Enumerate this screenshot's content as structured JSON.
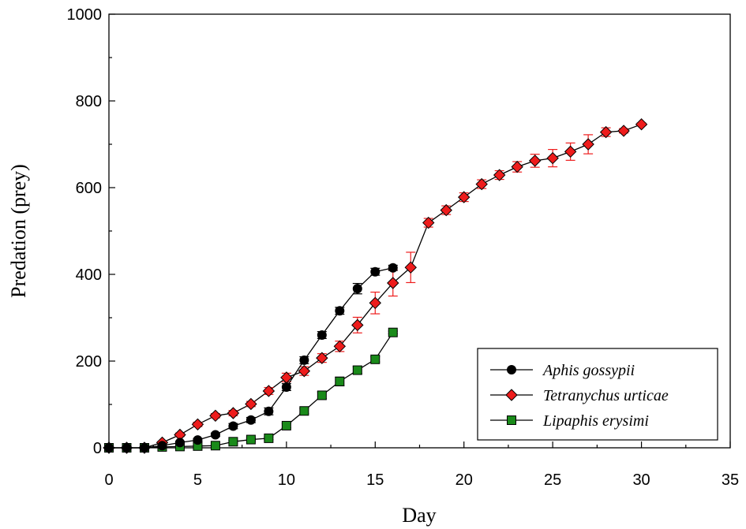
{
  "chart_data": {
    "type": "line",
    "title": "",
    "xlabel": "Day",
    "ylabel": "Predation (prey)",
    "xlim": [
      0,
      35
    ],
    "ylim": [
      0,
      1000
    ],
    "xticks": [
      "0",
      "5",
      "10",
      "15",
      "20",
      "25",
      "30",
      "35"
    ],
    "yticks": [
      "0",
      "200",
      "400",
      "600",
      "800",
      "1000"
    ],
    "grid": false,
    "legend_position": "bottom-right",
    "series": [
      {
        "name": "Aphis gossypii",
        "marker": "circle",
        "marker_color": "#000000",
        "error_color": "#000000",
        "x": [
          0,
          1,
          2,
          3,
          4,
          5,
          6,
          7,
          8,
          9,
          10,
          11,
          12,
          13,
          14,
          15,
          16
        ],
        "y": [
          0,
          0,
          0,
          5,
          12,
          18,
          30,
          50,
          64,
          84,
          140,
          202,
          260,
          316,
          367,
          406,
          415
        ],
        "err": [
          0,
          0,
          0,
          2,
          3,
          3,
          4,
          6,
          6,
          8,
          8,
          8,
          8,
          8,
          12,
          8,
          6
        ]
      },
      {
        "name": "Tetranychus urticae",
        "marker": "diamond",
        "marker_color": "#ee1c1c",
        "error_color": "#ee1c1c",
        "x": [
          0,
          1,
          2,
          3,
          4,
          5,
          6,
          7,
          8,
          9,
          10,
          11,
          12,
          13,
          14,
          15,
          16,
          17,
          18,
          19,
          20,
          21,
          22,
          23,
          24,
          25,
          26,
          27,
          28,
          29,
          30
        ],
        "y": [
          0,
          0,
          0,
          12,
          30,
          54,
          74,
          80,
          101,
          131,
          162,
          177,
          207,
          234,
          283,
          334,
          380,
          416,
          519,
          548,
          578,
          608,
          629,
          648,
          662,
          668,
          683,
          700,
          728,
          731,
          746
        ],
        "err": [
          0,
          0,
          0,
          3,
          4,
          5,
          5,
          6,
          6,
          8,
          10,
          10,
          10,
          12,
          18,
          25,
          30,
          35,
          10,
          10,
          10,
          10,
          10,
          12,
          15,
          20,
          20,
          22,
          10,
          5,
          3
        ]
      },
      {
        "name": "Lipaphis erysimi",
        "marker": "square",
        "marker_color": "#1a8a1a",
        "error_color": "#000000",
        "x": [
          0,
          1,
          2,
          3,
          4,
          5,
          6,
          7,
          8,
          9,
          10,
          11,
          12,
          13,
          14,
          15,
          16
        ],
        "y": [
          0,
          0,
          0,
          2,
          3,
          4,
          5,
          14,
          19,
          22,
          51,
          85,
          121,
          153,
          179,
          204,
          266
        ],
        "err": [
          0,
          0,
          0,
          1,
          1,
          1,
          1,
          3,
          3,
          3,
          5,
          6,
          8,
          10,
          8,
          6,
          3
        ]
      }
    ]
  }
}
